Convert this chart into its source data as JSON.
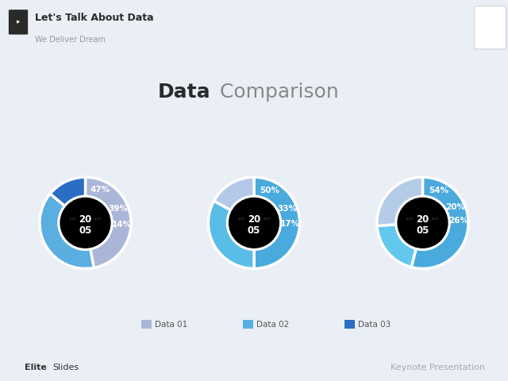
{
  "title_bold": "Data",
  "title_light": " Comparison",
  "title_fontsize": 18,
  "background_color": "#eaeff5",
  "header_color": "#ffffff",
  "header_title": "Let's Talk About Data",
  "header_subtitle": "We Deliver Dream",
  "footer_left_bold": "Elite",
  "footer_left_light": " Slides",
  "footer_right": "Keynote Presentation",
  "charts": [
    {
      "values": [
        47,
        39,
        14
      ],
      "colors": [
        "#aab6d8",
        "#5aaee0",
        "#2b6cc4"
      ],
      "labels": [
        "47%",
        "39%",
        "14%"
      ],
      "label_angles": [
        0,
        210,
        110
      ]
    },
    {
      "values": [
        50,
        33,
        17
      ],
      "colors": [
        "#4aaade",
        "#5abde8",
        "#b4c8e8"
      ],
      "labels": [
        "50%",
        "33%",
        "17%"
      ],
      "label_angles": [
        180,
        300,
        60
      ]
    },
    {
      "values": [
        54,
        20,
        26
      ],
      "colors": [
        "#4aaade",
        "#62c8ee",
        "#b4cce8"
      ],
      "labels": [
        "54%",
        "20%",
        "26%"
      ],
      "label_angles": [
        180,
        310,
        60
      ]
    }
  ],
  "legend_items": [
    {
      "label": "Data 01",
      "color": "#aab6d8"
    },
    {
      "label": "Data 02",
      "color": "#5aaee0"
    },
    {
      "label": "Data 03",
      "color": "#2b6cc4"
    }
  ],
  "center_text_line1": "20",
  "center_text_line2": "05"
}
